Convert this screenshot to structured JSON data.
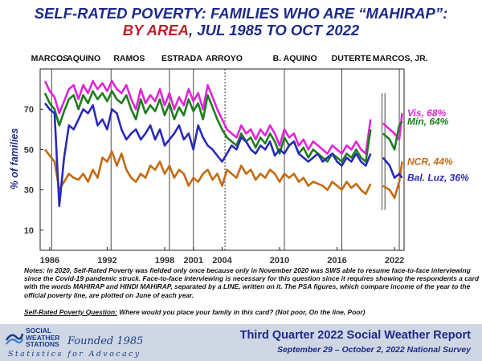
{
  "title": {
    "line1": "SELF-RATED POVERTY: FAMILIES WHO ARE “MAHIRAP”:",
    "line2_highlight": "BY AREA",
    "line2_rest": ", JUL 1985 TO OCT 2022"
  },
  "colors": {
    "title": "#1c2a8a",
    "highlight": "#c0202a",
    "Vis": "#e024d8",
    "Min": "#1e7d1e",
    "NCR": "#c46a10",
    "Bal. Luz": "#2a2ab8"
  },
  "chart_data": {
    "type": "line",
    "title": "SELF-RATED POVERTY: FAMILIES WHO ARE “MAHIRAP”: BY AREA, JUL 1985 TO OCT 2022",
    "xlabel": "",
    "ylabel": "% of families",
    "xlim": [
      1985,
      2023
    ],
    "ylim": [
      0,
      90
    ],
    "yticks": [
      10,
      30,
      50,
      70
    ],
    "xticks": [
      "1986",
      "1992",
      "1998",
      "2001",
      "2004",
      "2010",
      "2016",
      "2022"
    ],
    "administrations": [
      {
        "label": "MARCOS",
        "label_x": 1986.0,
        "start": 1985.5
      },
      {
        "label": "C. AQUINO",
        "label_x": 1989.0,
        "start": 1986.2
      },
      {
        "label": "RAMOS",
        "label_x": 1994.3,
        "start": 1992.4
      },
      {
        "label": "ESTRADA",
        "label_x": 1999.8,
        "start": 1998.5
      },
      {
        "label": "ARROYO",
        "label_x": 2004.2,
        "start": 2001.0
      },
      {
        "label": "B. AQUINO",
        "label_x": 2011.6,
        "start": 2010.5
      },
      {
        "label": "DUTERTE",
        "label_x": 2017.5,
        "start": 2016.5
      },
      {
        "label": "MARCOS, JR.",
        "label_x": 2022.6,
        "start": 2022.5
      }
    ],
    "pandemic_separators": [
      2020.7,
      2021.0
    ],
    "arroyo_dashed": 2004.3,
    "x": [
      1985.5,
      1986.0,
      1986.5,
      1987.0,
      1987.5,
      1988.0,
      1988.5,
      1989.0,
      1989.5,
      1990.0,
      1990.5,
      1991.0,
      1991.5,
      1992.0,
      1992.5,
      1993.0,
      1993.5,
      1994.0,
      1994.5,
      1995.0,
      1995.5,
      1996.0,
      1996.5,
      1997.0,
      1997.5,
      1998.0,
      1998.5,
      1999.0,
      1999.5,
      2000.0,
      2000.5,
      2001.0,
      2001.5,
      2002.0,
      2002.5,
      2003.0,
      2003.5,
      2004.0,
      2004.5,
      2005.0,
      2005.5,
      2006.0,
      2006.5,
      2007.0,
      2007.5,
      2008.0,
      2008.5,
      2009.0,
      2009.5,
      2010.0,
      2010.5,
      2011.0,
      2011.5,
      2012.0,
      2012.5,
      2013.0,
      2013.5,
      2014.0,
      2014.5,
      2015.0,
      2015.5,
      2016.0,
      2016.5,
      2017.0,
      2017.5,
      2018.0,
      2018.5,
      2019.0,
      2019.5,
      2020.8,
      2021.5,
      2022.0,
      2022.5,
      2022.8
    ],
    "series": [
      {
        "name": "Vis",
        "end_label": "Vis, 68%",
        "values": [
          84,
          79,
          76,
          68,
          74,
          80,
          82,
          75,
          82,
          78,
          84,
          80,
          83,
          79,
          84,
          80,
          78,
          82,
          75,
          70,
          80,
          73,
          77,
          74,
          80,
          72,
          78,
          70,
          76,
          72,
          80,
          74,
          78,
          70,
          82,
          76,
          70,
          65,
          60,
          58,
          56,
          62,
          58,
          60,
          55,
          60,
          57,
          62,
          58,
          52,
          60,
          56,
          58,
          52,
          55,
          50,
          54,
          52,
          50,
          48,
          52,
          50,
          48,
          52,
          50,
          54,
          50,
          48,
          65,
          63,
          60,
          58,
          55,
          68
        ]
      },
      {
        "name": "Min",
        "end_label": "Min, 64%",
        "values": [
          78,
          73,
          70,
          62,
          69,
          75,
          77,
          70,
          77,
          73,
          79,
          75,
          78,
          74,
          79,
          75,
          73,
          77,
          70,
          65,
          75,
          68,
          72,
          69,
          75,
          67,
          73,
          65,
          71,
          67,
          75,
          69,
          73,
          65,
          77,
          71,
          65,
          60,
          56,
          54,
          52,
          58,
          54,
          56,
          51,
          56,
          53,
          58,
          54,
          48,
          56,
          52,
          54,
          48,
          51,
          46,
          50,
          48,
          46,
          44,
          48,
          46,
          44,
          48,
          46,
          50,
          46,
          44,
          60,
          58,
          55,
          50,
          62,
          64
        ]
      },
      {
        "name": "NCR",
        "end_label": "NCR, 44%",
        "values": [
          50,
          47,
          44,
          30,
          34,
          38,
          36,
          35,
          38,
          34,
          40,
          36,
          46,
          44,
          49,
          42,
          48,
          40,
          36,
          34,
          38,
          36,
          42,
          40,
          44,
          38,
          42,
          36,
          40,
          38,
          32,
          36,
          34,
          38,
          40,
          35,
          38,
          32,
          40,
          38,
          36,
          42,
          38,
          40,
          35,
          38,
          36,
          40,
          38,
          34,
          38,
          36,
          38,
          34,
          36,
          32,
          34,
          33,
          32,
          30,
          34,
          32,
          30,
          34,
          31,
          33,
          30,
          28,
          33,
          32,
          30,
          26,
          34,
          44
        ]
      },
      {
        "name": "Bal. Luz",
        "end_label": "Bal. Luz, 36%",
        "values": [
          73,
          70,
          68,
          22,
          46,
          62,
          60,
          65,
          70,
          68,
          72,
          62,
          65,
          60,
          70,
          68,
          60,
          55,
          58,
          60,
          55,
          58,
          62,
          55,
          60,
          52,
          55,
          58,
          62,
          55,
          58,
          50,
          62,
          56,
          52,
          50,
          47,
          44,
          48,
          52,
          50,
          56,
          54,
          50,
          48,
          52,
          50,
          54,
          47,
          50,
          48,
          52,
          54,
          48,
          46,
          44,
          46,
          48,
          44,
          46,
          48,
          44,
          42,
          46,
          44,
          48,
          44,
          42,
          48,
          46,
          42,
          36,
          38,
          36
        ]
      }
    ]
  },
  "notes": "Notes: In 2020, Self-Rated Poverty was fielded only once because only in November 2020 was SWS able to resume face-to-face interviewing since the Covid-19 pandemic struck. Face-to-face interviewing is necessary for this question since it requires showing the respondents a card with the words MAHIRAP and HINDI MAHIRAP, separated by a LINE, written on it. The PSA figures, which compare income of the year to the official poverty line, are plotted on June of each year.",
  "question": {
    "label": "Self-Rated Poverty Question:",
    "text": " Where would you place your family in this card?  (Not poor, On the line, Poor)"
  },
  "footer": {
    "org_line1": "SOCIAL",
    "org_line2": "WEATHER",
    "org_line3": "STATIONS",
    "founded": "Founded 1985",
    "tagline": "Statistics for Advocacy",
    "report": "Third Quarter 2022 Social Weather Report",
    "survey": "September 29 – October 2, 2022 National Survey"
  }
}
